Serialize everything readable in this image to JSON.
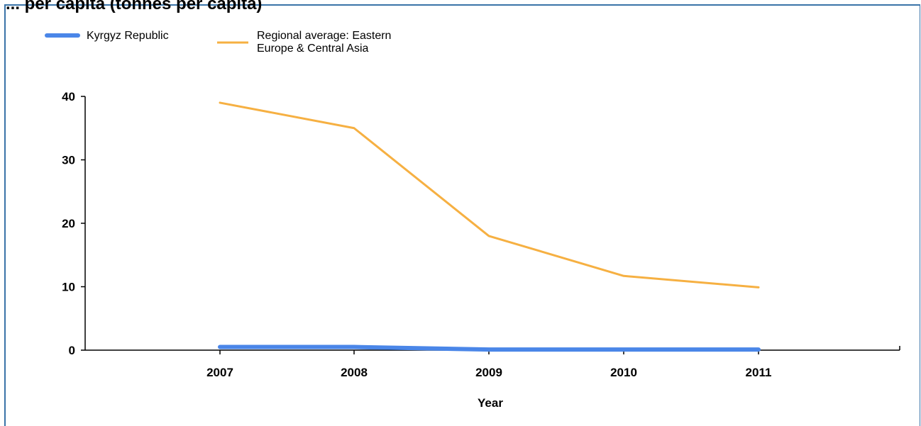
{
  "chart_data": {
    "type": "line",
    "title": "... per capita (tonnes per capita)",
    "xlabel": "Year",
    "ylabel": "",
    "categories": [
      "2007",
      "2008",
      "2009",
      "2010",
      "2011"
    ],
    "ylim": [
      0,
      40
    ],
    "yticks": [
      0,
      10,
      20,
      30,
      40
    ],
    "grid": false,
    "legend_position": "top-left",
    "series": [
      {
        "name": "Kyrgyz Republic",
        "values": [
          0.5,
          0.5,
          0.1,
          0.1,
          0.1
        ],
        "color": "#4a86e8"
      },
      {
        "name": "Regional average: Eastern Europe & Central Asia",
        "legend_lines": [
          "Regional average: Eastern",
          "Europe & Central Asia"
        ],
        "values": [
          39,
          35,
          18,
          11.7,
          9.9
        ],
        "color": "#f6b042"
      }
    ]
  }
}
